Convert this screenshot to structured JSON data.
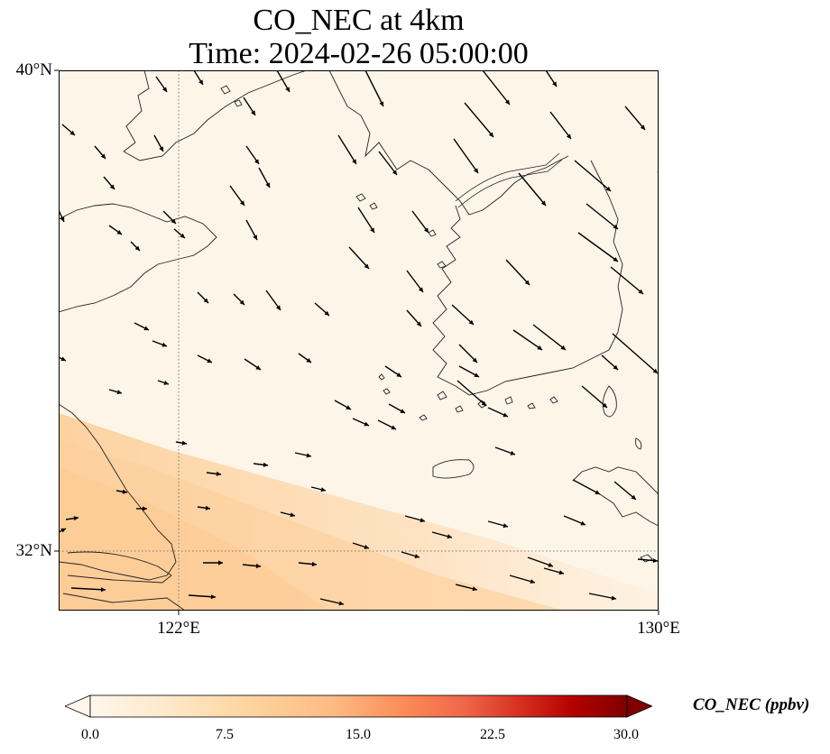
{
  "title": {
    "line1": "CO_NEC at 4km",
    "line2": "Time: 2024-02-26 05:00:00"
  },
  "map": {
    "lat_labels": [
      "40°N",
      "32°N"
    ],
    "lon_labels": [
      "122°E",
      "130°E"
    ],
    "gridlines": "dotted",
    "extent": {
      "lon": [
        120,
        130
      ],
      "lat": [
        31,
        40
      ]
    }
  },
  "field": {
    "variable": "CO_NEC",
    "units": "ppbv",
    "description_colors": {
      "low": "#fff5eb",
      "mid": "#fdbe85",
      "high": "#7f0000"
    }
  },
  "colorbar": {
    "label": "CO_NEC (ppbv)",
    "ticks": [
      "0.0",
      "7.5",
      "15.0",
      "22.5",
      "30.0"
    ],
    "range": [
      0,
      30
    ],
    "extend": "both",
    "colormap": "OrRd-like",
    "colors": [
      "#fff7ec",
      "#fee8c8",
      "#fdd49e",
      "#fdbb84",
      "#fc8d59",
      "#ef6548",
      "#d7301f",
      "#b30000",
      "#7f0000"
    ]
  },
  "wind_vectors": {
    "color": "#000000",
    "general_direction": "northwest-to-southeast"
  }
}
